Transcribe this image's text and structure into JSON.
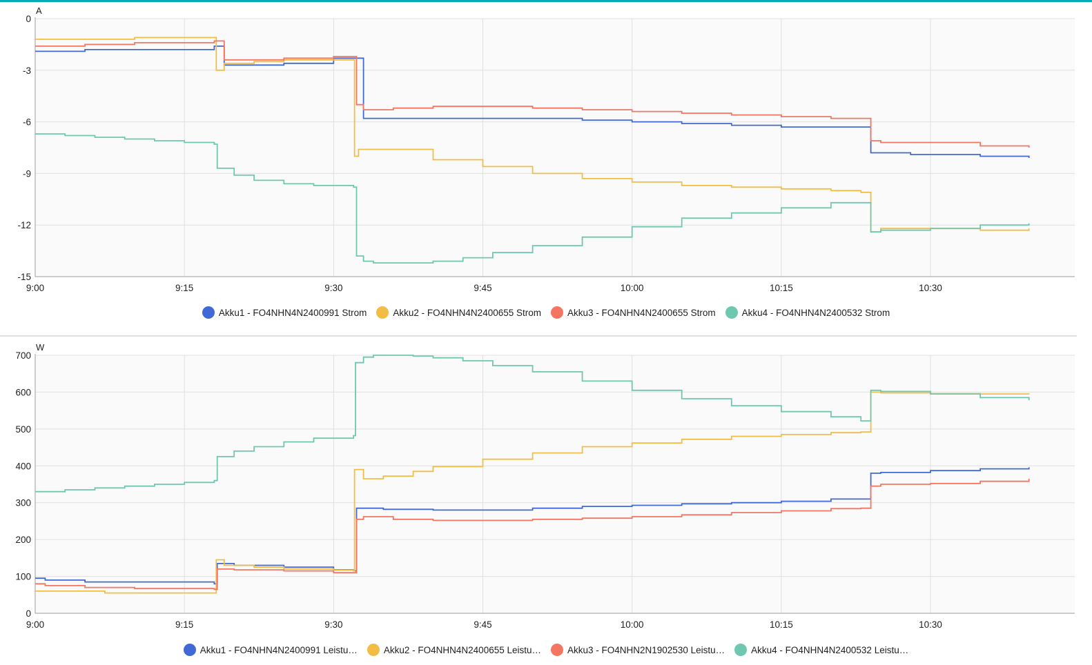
{
  "colors": {
    "accent": "#03a9b4",
    "series": [
      "#4169d6",
      "#f2bd45",
      "#f47561",
      "#6ec7af"
    ],
    "grid": "#e0e0e0",
    "plot_bg": "#fafafa"
  },
  "chart_data": [
    {
      "type": "line",
      "unit_label": "A",
      "x_ticks": [
        "9:00",
        "9:15",
        "9:30",
        "9:45",
        "10:00",
        "10:15",
        "10:30"
      ],
      "x_range": [
        "9:00",
        "10:45"
      ],
      "ylim": [
        -15,
        0
      ],
      "y_ticks": [
        "0",
        "-3",
        "-6",
        "-9",
        "-12",
        "-15"
      ],
      "grid": true,
      "legend_position": "bottom-center",
      "step": true,
      "series": [
        {
          "name": "Akku1 - FO4NHN4N2400991 Strom",
          "color": "#4169d6",
          "x": [
            0,
            5,
            18,
            19,
            21,
            25,
            30,
            32,
            33,
            36,
            40,
            45,
            50,
            55,
            60,
            65,
            70,
            75,
            80,
            83,
            84,
            85,
            88,
            90,
            95,
            99.9
          ],
          "y": [
            -1.9,
            -1.8,
            -1.6,
            -2.7,
            -2.7,
            -2.6,
            -2.3,
            -2.3,
            -5.8,
            -5.8,
            -5.8,
            -5.8,
            -5.8,
            -5.9,
            -6.0,
            -6.1,
            -6.2,
            -6.3,
            -6.3,
            -6.3,
            -7.8,
            -7.8,
            -7.9,
            -7.9,
            -8.0,
            -8.1
          ]
        },
        {
          "name": "Akku2 - FO4NHN4N2400655 Strom",
          "color": "#f2bd45",
          "x": [
            0,
            5,
            10,
            18,
            18.2,
            19,
            22,
            25,
            30,
            32,
            32.1,
            32.5,
            35,
            40,
            45,
            50,
            55,
            60,
            65,
            70,
            75,
            80,
            83,
            84,
            85,
            90,
            95,
            99.9
          ],
          "y": [
            -1.2,
            -1.2,
            -1.1,
            -1.1,
            -3.0,
            -2.6,
            -2.5,
            -2.4,
            -2.4,
            -2.4,
            -8.0,
            -7.6,
            -7.6,
            -8.2,
            -8.6,
            -9.0,
            -9.3,
            -9.5,
            -9.7,
            -9.8,
            -9.9,
            -10.0,
            -10.1,
            -12.4,
            -12.2,
            -12.2,
            -12.3,
            -12.2
          ]
        },
        {
          "name": "Akku3 - FO4NHN4N2400655 Strom",
          "color": "#f47561",
          "x": [
            0,
            5,
            10,
            18,
            19,
            25,
            30,
            32,
            32.3,
            33,
            36,
            40,
            45,
            50,
            55,
            60,
            65,
            70,
            75,
            80,
            83,
            84,
            85,
            90,
            95,
            99.9
          ],
          "y": [
            -1.6,
            -1.5,
            -1.4,
            -1.3,
            -2.4,
            -2.3,
            -2.2,
            -2.2,
            -5.0,
            -5.3,
            -5.2,
            -5.1,
            -5.1,
            -5.2,
            -5.3,
            -5.4,
            -5.5,
            -5.6,
            -5.7,
            -5.8,
            -5.8,
            -7.1,
            -7.2,
            -7.2,
            -7.4,
            -7.5
          ]
        },
        {
          "name": "Akku4 - FO4NHN4N2400532 Strom",
          "color": "#6ec7af",
          "x": [
            0,
            3,
            6,
            9,
            12,
            15,
            18,
            18.3,
            20,
            22,
            25,
            28,
            32,
            32.3,
            33,
            34,
            35,
            36,
            38,
            40,
            43,
            46,
            50,
            55,
            60,
            65,
            70,
            75,
            80,
            83,
            84,
            85,
            90,
            95,
            99.9
          ],
          "y": [
            -6.7,
            -6.8,
            -6.9,
            -7.0,
            -7.1,
            -7.2,
            -7.3,
            -8.7,
            -9.1,
            -9.4,
            -9.6,
            -9.7,
            -9.8,
            -13.8,
            -14.1,
            -14.2,
            -14.2,
            -14.2,
            -14.2,
            -14.1,
            -13.9,
            -13.6,
            -13.2,
            -12.7,
            -12.1,
            -11.6,
            -11.3,
            -11.0,
            -10.7,
            -10.7,
            -12.4,
            -12.3,
            -12.2,
            -12.0,
            -11.9
          ]
        }
      ]
    },
    {
      "type": "line",
      "unit_label": "W",
      "x_ticks": [
        "9:00",
        "9:15",
        "9:30",
        "9:45",
        "10:00",
        "10:15",
        "10:30"
      ],
      "x_range": [
        "9:00",
        "10:45"
      ],
      "ylim": [
        0,
        700
      ],
      "y_ticks": [
        "700",
        "600",
        "500",
        "400",
        "300",
        "200",
        "100",
        "0"
      ],
      "grid": true,
      "legend_position": "bottom-center",
      "step": true,
      "series": [
        {
          "name": "Akku1 - FO4NHN4N2400991 Leistu…",
          "color": "#4169d6",
          "x": [
            0,
            1,
            5,
            10,
            18,
            18.3,
            20,
            25,
            30,
            32,
            32.3,
            35,
            40,
            45,
            50,
            55,
            60,
            65,
            70,
            75,
            80,
            83,
            84,
            85,
            90,
            95,
            99.9
          ],
          "y": [
            95,
            90,
            85,
            85,
            80,
            135,
            130,
            125,
            118,
            115,
            285,
            282,
            280,
            280,
            285,
            290,
            293,
            297,
            300,
            304,
            310,
            310,
            380,
            382,
            387,
            392,
            396
          ]
        },
        {
          "name": "Akku2 - FO4NHN4N2400655 Leistu…",
          "color": "#f2bd45",
          "x": [
            0,
            5,
            7,
            10,
            18,
            18.2,
            19,
            22,
            25,
            30,
            32,
            32.1,
            33,
            35,
            38,
            40,
            45,
            50,
            55,
            60,
            65,
            70,
            75,
            80,
            83,
            84,
            85,
            90,
            95,
            99.9
          ],
          "y": [
            60,
            60,
            55,
            55,
            55,
            145,
            130,
            125,
            120,
            117,
            115,
            390,
            365,
            372,
            385,
            398,
            418,
            435,
            452,
            462,
            472,
            480,
            485,
            490,
            492,
            600,
            598,
            596,
            595,
            594
          ]
        },
        {
          "name": "Akku3 - FO4NHN2N1902530 Leistu…",
          "color": "#f47561",
          "x": [
            0,
            1,
            5,
            10,
            18,
            18.3,
            20,
            25,
            30,
            32,
            32.3,
            33,
            36,
            40,
            45,
            50,
            55,
            60,
            65,
            70,
            75,
            80,
            83,
            84,
            85,
            90,
            95,
            99.9
          ],
          "y": [
            80,
            75,
            70,
            67,
            65,
            120,
            118,
            115,
            110,
            110,
            255,
            262,
            255,
            252,
            252,
            255,
            258,
            262,
            267,
            273,
            278,
            284,
            285,
            345,
            350,
            352,
            358,
            365
          ]
        },
        {
          "name": "Akku4 - FO4NHN4N2400532 Leistu…",
          "color": "#6ec7af",
          "x": [
            0,
            3,
            6,
            9,
            12,
            15,
            18,
            18.3,
            20,
            22,
            25,
            28,
            32,
            32.2,
            33,
            34,
            36,
            38,
            40,
            43,
            46,
            50,
            55,
            60,
            65,
            70,
            75,
            80,
            83,
            84,
            85,
            90,
            95,
            99.9
          ],
          "y": [
            330,
            335,
            340,
            345,
            350,
            355,
            360,
            425,
            440,
            452,
            465,
            475,
            482,
            680,
            695,
            700,
            700,
            698,
            693,
            685,
            672,
            655,
            630,
            605,
            582,
            563,
            547,
            533,
            522,
            605,
            602,
            595,
            585,
            578
          ]
        }
      ]
    }
  ]
}
